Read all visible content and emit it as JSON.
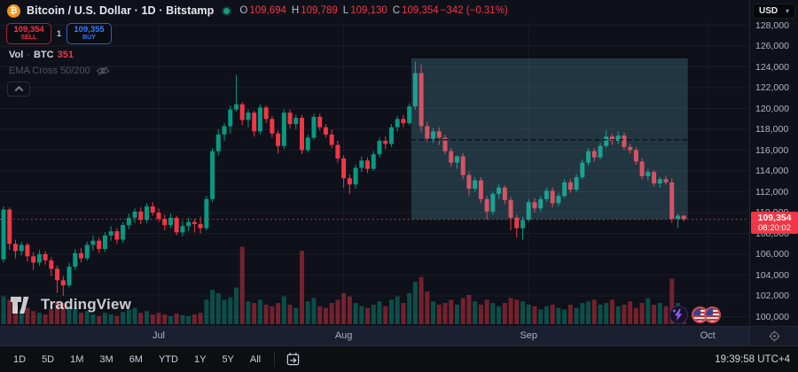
{
  "header": {
    "title": "Bitcoin / U.S. Dollar · 1D · Bitstamp",
    "ohlc": {
      "o_label": "O",
      "o": "109,694",
      "h_label": "H",
      "h": "109,789",
      "l_label": "L",
      "l": "109,130",
      "c_label": "C",
      "c": "109,354",
      "change": "−342 (−0.31%)"
    }
  },
  "trade": {
    "sell_price": "109,354",
    "sell_label": "SELL",
    "spread": "1",
    "buy_price": "109,355",
    "buy_label": "BUY"
  },
  "legends": {
    "volume_title": "Vol",
    "volume_sep": "·",
    "volume_symbol": "BTC",
    "volume_value": "351",
    "ema_label": "EMA Cross 50/200"
  },
  "price_axis": {
    "currency": "USD",
    "ticks": [
      {
        "label": "128,000",
        "value": 128000
      },
      {
        "label": "126,000",
        "value": 126000
      },
      {
        "label": "124,000",
        "value": 124000
      },
      {
        "label": "122,000",
        "value": 122000
      },
      {
        "label": "120,000",
        "value": 120000
      },
      {
        "label": "118,000",
        "value": 118000
      },
      {
        "label": "116,000",
        "value": 116000
      },
      {
        "label": "114,000",
        "value": 114000
      },
      {
        "label": "112,000",
        "value": 112000
      },
      {
        "label": "110,000",
        "value": 110000
      },
      {
        "label": "108,000",
        "value": 108000
      },
      {
        "label": "106,000",
        "value": 106000
      },
      {
        "label": "104,000",
        "value": 104000
      },
      {
        "label": "102,000",
        "value": 102000
      },
      {
        "label": "100,000",
        "value": 100000
      }
    ],
    "current_label": "109,354",
    "countdown": "08:20:02"
  },
  "time_axis": {
    "months": [
      {
        "label": "Jul",
        "index": 26
      },
      {
        "label": "Aug",
        "index": 57
      },
      {
        "label": "Sep",
        "index": 88
      },
      {
        "label": "Oct",
        "index": 118
      }
    ]
  },
  "toolbar": {
    "ranges": [
      "1D",
      "5D",
      "1M",
      "3M",
      "6M",
      "YTD",
      "1Y",
      "5Y",
      "All"
    ],
    "clock": "19:39:58 UTC+4"
  },
  "watermark_text": "TradingView",
  "colors": {
    "up": "#089981",
    "down": "#F23645",
    "buy_blue": "#3b7cf7",
    "bitcoin_orange": "#F7931A",
    "box_fill": "rgba(110,185,210,0.22)",
    "grid": "rgba(255,255,255,0.05)"
  },
  "chart_data": {
    "type": "candlestick_with_volume",
    "symbol": "BTCUSD",
    "interval": "1D",
    "price_axis_range": [
      100000,
      128000
    ],
    "current_price": 109354,
    "range_box": {
      "start_index": 69,
      "end_index": 114,
      "top_price": 124900,
      "bottom_price": 109354,
      "dashed_level": 117000
    },
    "candles": [
      [
        105500,
        110600,
        105200,
        110300
      ],
      [
        110300,
        110500,
        106400,
        107000
      ],
      [
        107000,
        107400,
        105600,
        106300
      ],
      [
        106300,
        107200,
        105900,
        106900
      ],
      [
        106900,
        107100,
        105300,
        105800
      ],
      [
        105800,
        106200,
        104500,
        105200
      ],
      [
        105200,
        106400,
        104900,
        106000
      ],
      [
        106000,
        106300,
        105000,
        105400
      ],
      [
        105400,
        105700,
        103900,
        104600
      ],
      [
        104600,
        104900,
        102300,
        103500
      ],
      [
        103500,
        103900,
        102000,
        103000
      ],
      [
        103000,
        105200,
        102800,
        104800
      ],
      [
        104800,
        106500,
        104500,
        106100
      ],
      [
        106100,
        106600,
        105200,
        105600
      ],
      [
        105600,
        107200,
        105400,
        106900
      ],
      [
        106900,
        107800,
        106300,
        107300
      ],
      [
        107300,
        107600,
        106100,
        106500
      ],
      [
        106500,
        108100,
        106200,
        107800
      ],
      [
        107800,
        108700,
        107300,
        108200
      ],
      [
        108200,
        108500,
        107000,
        107400
      ],
      [
        107400,
        109100,
        107100,
        108800
      ],
      [
        108800,
        109900,
        108400,
        109500
      ],
      [
        109500,
        110400,
        109000,
        110100
      ],
      [
        110100,
        110500,
        108900,
        109300
      ],
      [
        109300,
        110900,
        109000,
        110600
      ],
      [
        110600,
        111000,
        109700,
        110000
      ],
      [
        110000,
        110400,
        109100,
        109400
      ],
      [
        109400,
        109800,
        108300,
        108800
      ],
      [
        108800,
        109900,
        108500,
        109500
      ],
      [
        109500,
        109700,
        107800,
        108100
      ],
      [
        108100,
        109200,
        107700,
        108700
      ],
      [
        108700,
        109500,
        108200,
        109100
      ],
      [
        109100,
        109400,
        108100,
        108900
      ],
      [
        108900,
        109600,
        108000,
        108500
      ],
      [
        108500,
        111600,
        108300,
        111300
      ],
      [
        111300,
        116200,
        111000,
        115900
      ],
      [
        115900,
        118000,
        115500,
        117500
      ],
      [
        117500,
        118600,
        116900,
        118300
      ],
      [
        118300,
        120300,
        117600,
        119900
      ],
      [
        119900,
        123200,
        119700,
        120400
      ],
      [
        120400,
        120600,
        118400,
        118900
      ],
      [
        118900,
        119900,
        118200,
        119600
      ],
      [
        119600,
        119800,
        117300,
        117800
      ],
      [
        117800,
        120400,
        117500,
        120100
      ],
      [
        120100,
        120300,
        118600,
        119000
      ],
      [
        119000,
        119300,
        117200,
        117600
      ],
      [
        117600,
        117900,
        115700,
        116400
      ],
      [
        116400,
        119900,
        116100,
        119600
      ],
      [
        119600,
        119900,
        118100,
        118500
      ],
      [
        118500,
        119400,
        118000,
        119100
      ],
      [
        119100,
        119400,
        115600,
        116000
      ],
      [
        116000,
        117500,
        115800,
        117200
      ],
      [
        117200,
        119500,
        117000,
        119200
      ],
      [
        119200,
        119500,
        117900,
        118200
      ],
      [
        118200,
        118500,
        117200,
        117500
      ],
      [
        117500,
        118000,
        116200,
        116500
      ],
      [
        116500,
        116900,
        114800,
        115200
      ],
      [
        115200,
        115500,
        112400,
        113300
      ],
      [
        113300,
        113700,
        111800,
        112700
      ],
      [
        112700,
        114600,
        112300,
        114300
      ],
      [
        114300,
        115400,
        113900,
        115000
      ],
      [
        115000,
        115300,
        113800,
        114200
      ],
      [
        114200,
        115900,
        114000,
        115600
      ],
      [
        115600,
        117200,
        115300,
        116900
      ],
      [
        116900,
        117300,
        116100,
        116600
      ],
      [
        116600,
        118500,
        116300,
        118200
      ],
      [
        118200,
        119300,
        117800,
        119000
      ],
      [
        119000,
        119400,
        118200,
        118600
      ],
      [
        118600,
        120500,
        118400,
        120200
      ],
      [
        120200,
        124500,
        119900,
        123400
      ],
      [
        123400,
        124200,
        117700,
        118300
      ],
      [
        118300,
        118700,
        116800,
        117100
      ],
      [
        117100,
        118100,
        116700,
        117800
      ],
      [
        117800,
        118200,
        116500,
        117200
      ],
      [
        117200,
        117500,
        115600,
        115900
      ],
      [
        115900,
        116200,
        114400,
        114800
      ],
      [
        114800,
        115500,
        114200,
        115400
      ],
      [
        115400,
        115700,
        113200,
        113600
      ],
      [
        113600,
        113900,
        111600,
        112300
      ],
      [
        112300,
        113400,
        112000,
        113100
      ],
      [
        113100,
        113400,
        110900,
        111300
      ],
      [
        111300,
        111600,
        109300,
        110100
      ],
      [
        110100,
        112000,
        109800,
        111800
      ],
      [
        111800,
        112700,
        111300,
        112400
      ],
      [
        112400,
        112600,
        110800,
        111200
      ],
      [
        111200,
        111500,
        108300,
        109500
      ],
      [
        109500,
        109800,
        107600,
        108500
      ],
      [
        108500,
        109600,
        107400,
        109300
      ],
      [
        109300,
        111300,
        109100,
        111000
      ],
      [
        111000,
        111400,
        110000,
        110400
      ],
      [
        110400,
        111600,
        110100,
        111300
      ],
      [
        111300,
        112400,
        111000,
        112100
      ],
      [
        112100,
        112400,
        110500,
        110900
      ],
      [
        110900,
        111900,
        110600,
        111600
      ],
      [
        111600,
        113200,
        111400,
        112900
      ],
      [
        112900,
        113200,
        111900,
        112200
      ],
      [
        112200,
        113700,
        112000,
        113400
      ],
      [
        113400,
        115100,
        113200,
        114800
      ],
      [
        114800,
        116200,
        114500,
        115900
      ],
      [
        115900,
        116200,
        114900,
        115300
      ],
      [
        115300,
        116700,
        115100,
        116400
      ],
      [
        116400,
        117900,
        116200,
        117300
      ],
      [
        117300,
        117600,
        116500,
        116900
      ],
      [
        116900,
        117800,
        116600,
        117400
      ],
      [
        117400,
        117700,
        116000,
        116300
      ],
      [
        116300,
        116600,
        115700,
        116000
      ],
      [
        116000,
        116300,
        114600,
        114900
      ],
      [
        114900,
        115200,
        113200,
        113500
      ],
      [
        113500,
        114200,
        113100,
        113900
      ],
      [
        113900,
        114100,
        112500,
        112800
      ],
      [
        112800,
        113400,
        112400,
        113200
      ],
      [
        113200,
        113500,
        112700,
        112900
      ],
      [
        112900,
        113300,
        109000,
        109400
      ],
      [
        109400,
        109900,
        108500,
        109700
      ],
      [
        109694,
        109789,
        109130,
        109354
      ]
    ],
    "volume_rel": [
      34,
      30,
      22,
      18,
      20,
      16,
      14,
      12,
      18,
      28,
      26,
      22,
      20,
      14,
      16,
      12,
      10,
      14,
      12,
      10,
      15,
      18,
      20,
      14,
      16,
      12,
      14,
      12,
      10,
      13,
      11,
      10,
      12,
      14,
      30,
      42,
      38,
      30,
      33,
      45,
      95,
      28,
      26,
      30,
      24,
      22,
      26,
      34,
      24,
      20,
      90,
      28,
      32,
      22,
      20,
      26,
      30,
      38,
      34,
      26,
      22,
      20,
      24,
      28,
      22,
      30,
      34,
      26,
      38,
      52,
      58,
      40,
      28,
      24,
      26,
      30,
      24,
      32,
      36,
      28,
      24,
      30,
      26,
      22,
      26,
      32,
      30,
      28,
      24,
      22,
      18,
      22,
      24,
      20,
      18,
      24,
      20,
      26,
      28,
      30,
      24,
      26,
      30,
      22,
      24,
      28,
      20,
      26,
      32,
      24,
      26,
      22,
      56,
      26,
      20
    ]
  }
}
